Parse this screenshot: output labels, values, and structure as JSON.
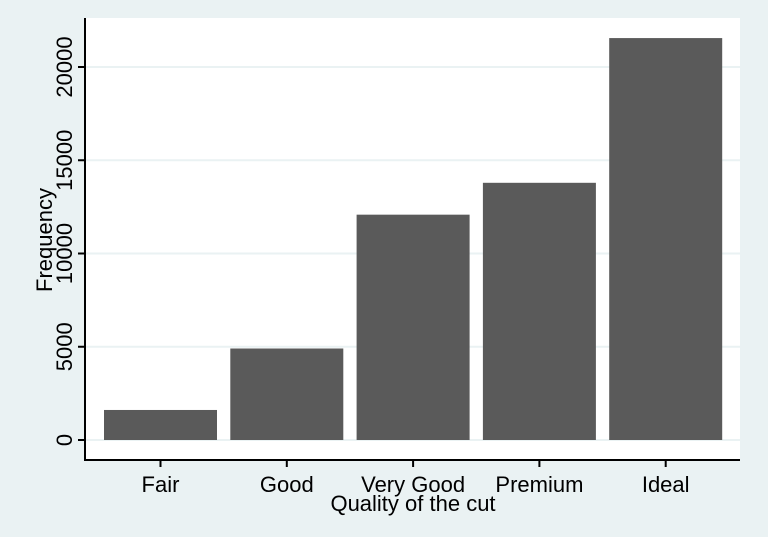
{
  "chart_data": {
    "type": "bar",
    "categories": [
      "Fair",
      "Good",
      "Very Good",
      "Premium",
      "Ideal"
    ],
    "values": [
      1610,
      4906,
      12082,
      13791,
      21551
    ],
    "xlabel": "Quality of the cut",
    "ylabel": "Frequency",
    "yticks": [
      0,
      5000,
      10000,
      15000,
      20000
    ],
    "ylim": [
      -800,
      22500
    ],
    "grid": true,
    "colors": {
      "bar": "#5a5a5a",
      "background": "#eaf2f3",
      "plot": "#ffffff",
      "grid": "#eaf2f3"
    }
  }
}
